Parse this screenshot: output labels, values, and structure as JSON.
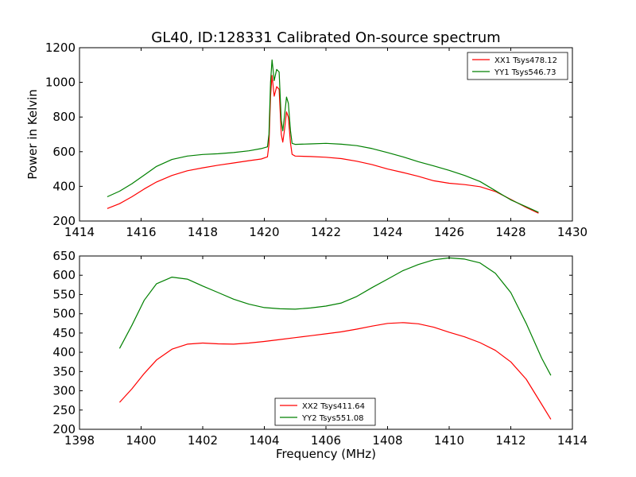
{
  "figure": {
    "title": "GL40, ID:128331 Calibrated On-source spectrum",
    "ylabel": "Power in Kelvin",
    "xlabel": "Frequency (MHz)"
  },
  "colors": {
    "red": "#ff0000",
    "green": "#008000"
  },
  "chart_data": [
    {
      "type": "line",
      "title": "GL40, ID:128331 Calibrated On-source spectrum",
      "ylabel": "Power in Kelvin",
      "xlabel": "",
      "xlim": [
        1414,
        1430
      ],
      "ylim": [
        200,
        1200
      ],
      "xticks": [
        1414,
        1416,
        1418,
        1420,
        1422,
        1424,
        1426,
        1428,
        1430
      ],
      "yticks": [
        200,
        400,
        600,
        800,
        1000,
        1200
      ],
      "grid": false,
      "legend": "top-right",
      "series": [
        {
          "name": "XX1 Tsys478.12",
          "color": "#ff0000",
          "points": [
            [
              1414.9,
              272
            ],
            [
              1415.3,
              300
            ],
            [
              1415.7,
              340
            ],
            [
              1416.1,
              385
            ],
            [
              1416.5,
              425
            ],
            [
              1417.0,
              463
            ],
            [
              1417.5,
              490
            ],
            [
              1418.0,
              507
            ],
            [
              1418.5,
              522
            ],
            [
              1419.0,
              535
            ],
            [
              1419.5,
              548
            ],
            [
              1419.9,
              558
            ],
            [
              1420.1,
              570
            ],
            [
              1420.15,
              640
            ],
            [
              1420.2,
              920
            ],
            [
              1420.25,
              1040
            ],
            [
              1420.32,
              920
            ],
            [
              1420.4,
              975
            ],
            [
              1420.48,
              960
            ],
            [
              1420.55,
              700
            ],
            [
              1420.6,
              655
            ],
            [
              1420.65,
              720
            ],
            [
              1420.72,
              830
            ],
            [
              1420.78,
              800
            ],
            [
              1420.85,
              650
            ],
            [
              1420.9,
              585
            ],
            [
              1421.0,
              575
            ],
            [
              1421.5,
              572
            ],
            [
              1422.0,
              568
            ],
            [
              1422.5,
              560
            ],
            [
              1423.0,
              545
            ],
            [
              1423.5,
              525
            ],
            [
              1424.0,
              500
            ],
            [
              1424.5,
              480
            ],
            [
              1425.0,
              458
            ],
            [
              1425.5,
              432
            ],
            [
              1426.0,
              418
            ],
            [
              1426.5,
              410
            ],
            [
              1427.0,
              398
            ],
            [
              1427.5,
              370
            ],
            [
              1428.0,
              325
            ],
            [
              1428.5,
              278
            ],
            [
              1428.9,
              245
            ]
          ]
        },
        {
          "name": "YY1 Tsys546.73",
          "color": "#008000",
          "points": [
            [
              1414.9,
              340
            ],
            [
              1415.3,
              372
            ],
            [
              1415.7,
              415
            ],
            [
              1416.1,
              465
            ],
            [
              1416.5,
              515
            ],
            [
              1417.0,
              555
            ],
            [
              1417.5,
              575
            ],
            [
              1418.0,
              584
            ],
            [
              1418.5,
              588
            ],
            [
              1419.0,
              595
            ],
            [
              1419.5,
              605
            ],
            [
              1419.9,
              618
            ],
            [
              1420.1,
              628
            ],
            [
              1420.15,
              700
            ],
            [
              1420.2,
              1000
            ],
            [
              1420.25,
              1130
            ],
            [
              1420.32,
              1010
            ],
            [
              1420.4,
              1075
            ],
            [
              1420.48,
              1060
            ],
            [
              1420.55,
              780
            ],
            [
              1420.6,
              720
            ],
            [
              1420.65,
              800
            ],
            [
              1420.72,
              915
            ],
            [
              1420.78,
              880
            ],
            [
              1420.85,
              720
            ],
            [
              1420.9,
              648
            ],
            [
              1421.0,
              642
            ],
            [
              1421.5,
              645
            ],
            [
              1422.0,
              648
            ],
            [
              1422.5,
              643
            ],
            [
              1423.0,
              635
            ],
            [
              1423.5,
              618
            ],
            [
              1424.0,
              595
            ],
            [
              1424.5,
              570
            ],
            [
              1425.0,
              542
            ],
            [
              1425.5,
              518
            ],
            [
              1426.0,
              492
            ],
            [
              1426.5,
              463
            ],
            [
              1427.0,
              428
            ],
            [
              1427.5,
              375
            ],
            [
              1428.0,
              322
            ],
            [
              1428.5,
              282
            ],
            [
              1428.9,
              250
            ]
          ]
        }
      ]
    },
    {
      "type": "line",
      "title": "",
      "ylabel": "",
      "xlabel": "Frequency (MHz)",
      "xlim": [
        1398,
        1414
      ],
      "ylim": [
        200,
        650
      ],
      "xticks": [
        1398,
        1400,
        1402,
        1404,
        1406,
        1408,
        1410,
        1412,
        1414
      ],
      "yticks": [
        200,
        250,
        300,
        350,
        400,
        450,
        500,
        550,
        600,
        650
      ],
      "grid": false,
      "legend": "bottom-center",
      "series": [
        {
          "name": "XX2 Tsys411.64",
          "color": "#ff0000",
          "points": [
            [
              1399.3,
              270
            ],
            [
              1399.7,
              305
            ],
            [
              1400.1,
              345
            ],
            [
              1400.5,
              380
            ],
            [
              1401.0,
              408
            ],
            [
              1401.5,
              421
            ],
            [
              1402.0,
              424
            ],
            [
              1402.5,
              422
            ],
            [
              1403.0,
              421
            ],
            [
              1403.5,
              424
            ],
            [
              1404.0,
              428
            ],
            [
              1404.5,
              433
            ],
            [
              1405.0,
              438
            ],
            [
              1405.5,
              443
            ],
            [
              1406.0,
              448
            ],
            [
              1406.5,
              453
            ],
            [
              1407.0,
              460
            ],
            [
              1407.5,
              468
            ],
            [
              1408.0,
              475
            ],
            [
              1408.5,
              477
            ],
            [
              1409.0,
              474
            ],
            [
              1409.5,
              465
            ],
            [
              1410.0,
              452
            ],
            [
              1410.5,
              440
            ],
            [
              1411.0,
              425
            ],
            [
              1411.5,
              405
            ],
            [
              1412.0,
              375
            ],
            [
              1412.5,
              330
            ],
            [
              1413.0,
              265
            ],
            [
              1413.3,
              226
            ]
          ]
        },
        {
          "name": "YY2 Tsys551.08",
          "color": "#008000",
          "points": [
            [
              1399.3,
              410
            ],
            [
              1399.7,
              470
            ],
            [
              1400.1,
              535
            ],
            [
              1400.5,
              578
            ],
            [
              1401.0,
              595
            ],
            [
              1401.5,
              590
            ],
            [
              1402.0,
              572
            ],
            [
              1402.5,
              555
            ],
            [
              1403.0,
              538
            ],
            [
              1403.5,
              525
            ],
            [
              1404.0,
              516
            ],
            [
              1404.5,
              513
            ],
            [
              1405.0,
              512
            ],
            [
              1405.5,
              515
            ],
            [
              1406.0,
              520
            ],
            [
              1406.5,
              528
            ],
            [
              1407.0,
              545
            ],
            [
              1407.5,
              568
            ],
            [
              1408.0,
              590
            ],
            [
              1408.5,
              612
            ],
            [
              1409.0,
              628
            ],
            [
              1409.5,
              640
            ],
            [
              1410.0,
              645
            ],
            [
              1410.5,
              642
            ],
            [
              1411.0,
              632
            ],
            [
              1411.5,
              605
            ],
            [
              1412.0,
              555
            ],
            [
              1412.5,
              475
            ],
            [
              1413.0,
              385
            ],
            [
              1413.3,
              340
            ]
          ]
        }
      ]
    }
  ]
}
